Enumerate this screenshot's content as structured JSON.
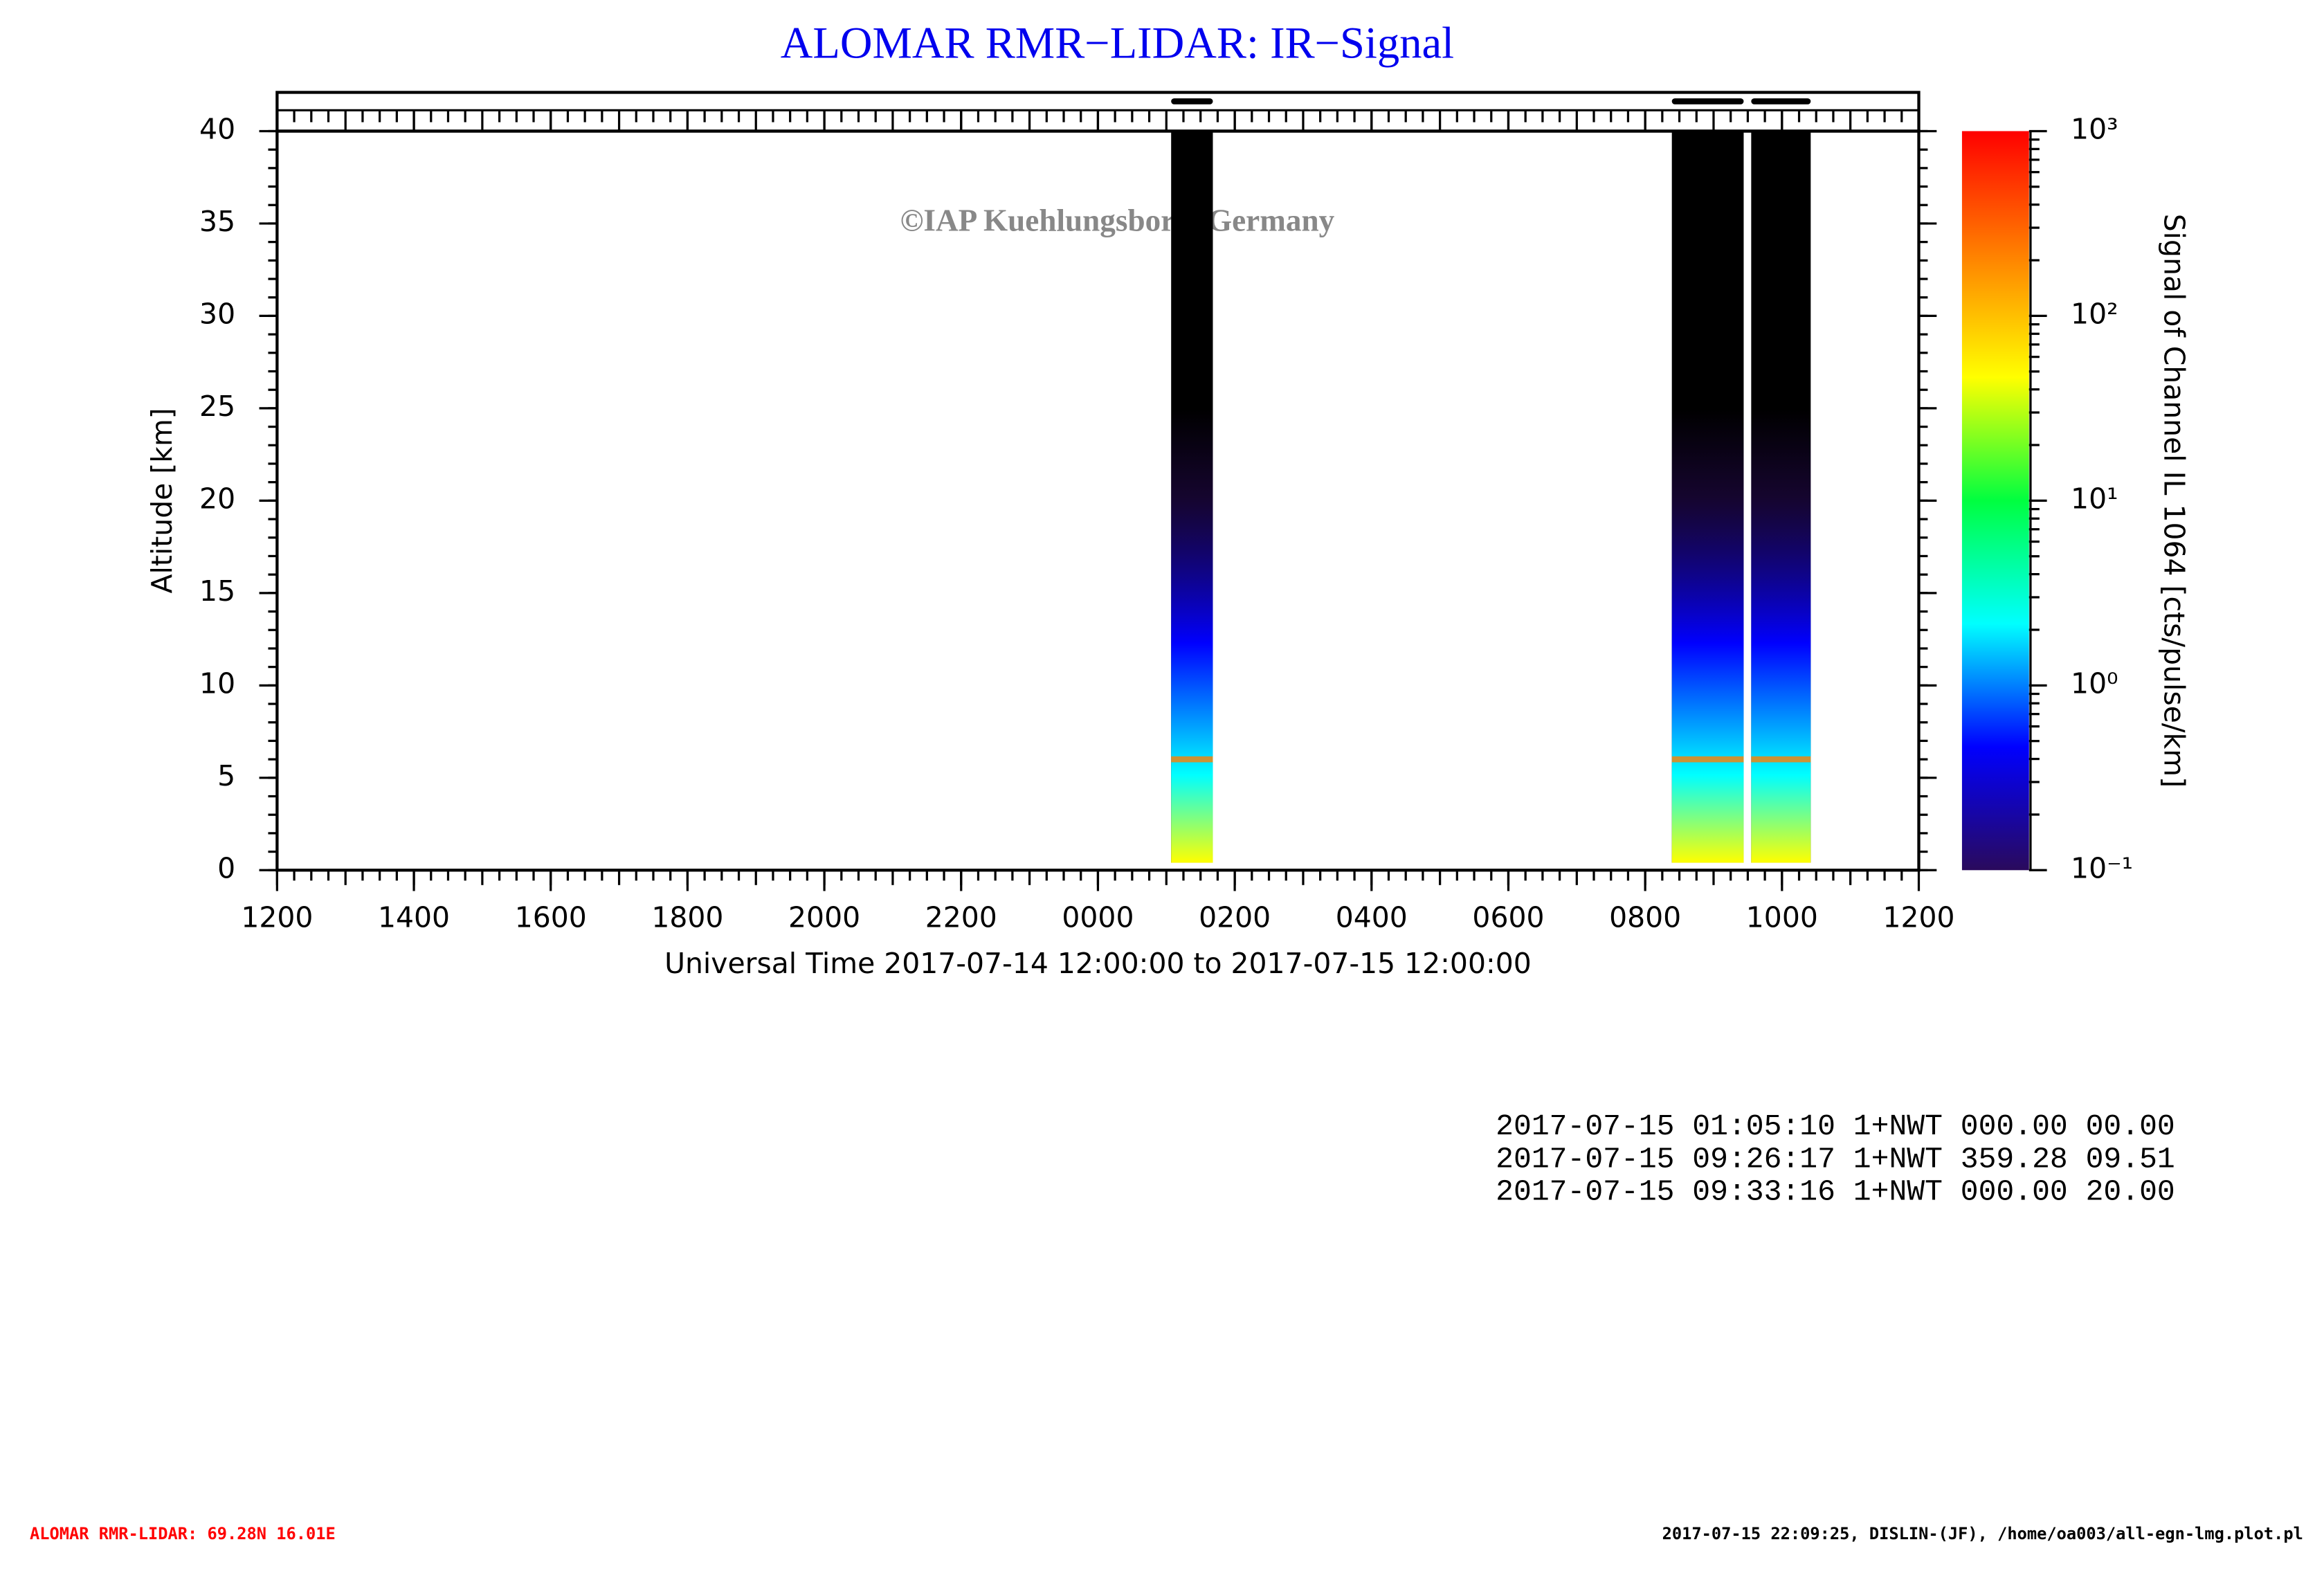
{
  "chart_data": {
    "type": "lidar",
    "title": "ALOMAR RMR−LIDAR: IR−Signal",
    "watermark": "©IAP Kuehlungsborn, Germany",
    "x_label": "Universal Time 2017-07-14 12:00:00 to 2017-07-15 12:00:00",
    "y_label": "Altitude [km]",
    "colorbar_label": "Signal of Channel IL 1064 [cts/pulse/km]",
    "xlim": [
      0,
      24
    ],
    "xticks": [
      {
        "value": 0,
        "label": "1200"
      },
      {
        "value": 2,
        "label": "1400"
      },
      {
        "value": 4,
        "label": "1600"
      },
      {
        "value": 6,
        "label": "1800"
      },
      {
        "value": 8,
        "label": "2000"
      },
      {
        "value": 10,
        "label": "2200"
      },
      {
        "value": 12,
        "label": "0000"
      },
      {
        "value": 14,
        "label": "0200"
      },
      {
        "value": 16,
        "label": "0400"
      },
      {
        "value": 18,
        "label": "0600"
      },
      {
        "value": 20,
        "label": "0800"
      },
      {
        "value": 22,
        "label": "1000"
      },
      {
        "value": 24,
        "label": "1200"
      }
    ],
    "ylim": [
      0,
      40
    ],
    "yticks": [
      0,
      5,
      10,
      15,
      20,
      25,
      30,
      35,
      40
    ],
    "clim": [
      0.1,
      1000
    ],
    "color_scale": "log",
    "cticks": [
      {
        "value": 0.1,
        "label": "10⁻¹"
      },
      {
        "value": 1,
        "label": "10⁰"
      },
      {
        "value": 10,
        "label": "10¹"
      },
      {
        "value": 100,
        "label": "10²"
      },
      {
        "value": 1000,
        "label": "10³"
      }
    ],
    "colormap": [
      "#2a0a5c",
      "#0000ff",
      "#00ffff",
      "#00ff40",
      "#ffff00",
      "#ff8000",
      "#ff0000"
    ],
    "measurements": [
      {
        "start": 13.07,
        "end": 13.68
      },
      {
        "start": 20.39,
        "end": 21.44
      },
      {
        "start": 21.55,
        "end": 22.42
      }
    ]
  },
  "info_lines": [
    "2017-07-15 01:05:10 1+NWT 000.00 00.00",
    "2017-07-15 09:26:17 1+NWT 359.28 09.51",
    "2017-07-15 09:33:16 1+NWT 000.00 20.00"
  ],
  "footer": {
    "left": "ALOMAR RMR-LIDAR: 69.28N 16.01E",
    "right": "2017-07-15 22:09:25, DISLIN-(JF), /home/oa003/all-egn-lmg.plot.pl"
  }
}
